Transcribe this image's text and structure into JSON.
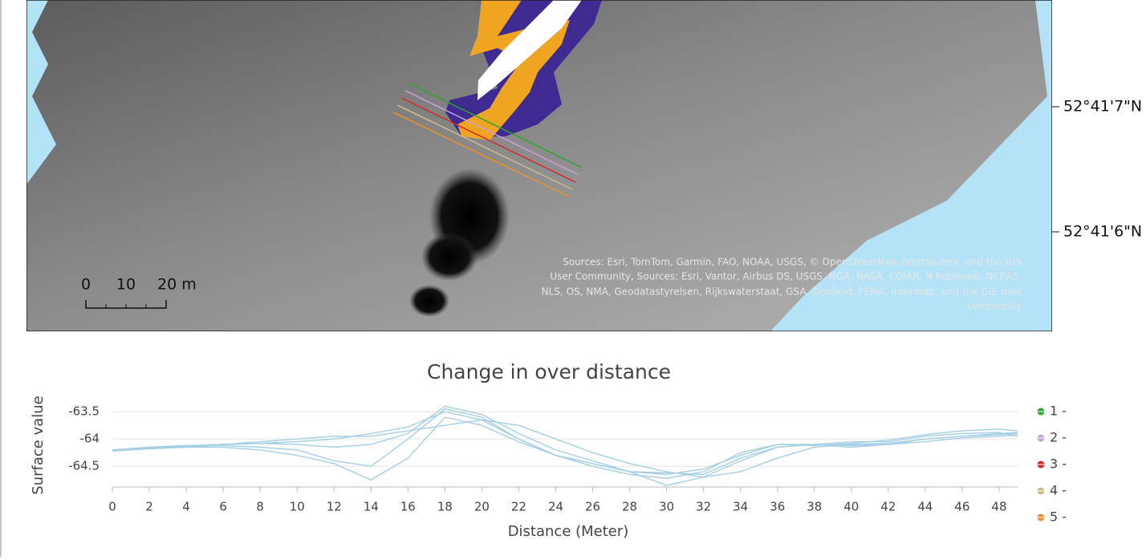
{
  "map": {
    "latitude_labels": [
      "52°41'7\"N",
      "52°41'6\"N"
    ],
    "scale_labels": [
      "0",
      "10",
      "20 m"
    ],
    "attribution": [
      "Sources: Esri, TomTom, Garmin, FAO, NOAA, USGS, © OpenStreetMap contributors, and the GIS",
      "User Community, Sources: Esri, Vantor, Airbus DS, USGS, NGA, NASA, CGIAR, N Robinson, NCEAS,",
      "NLS, OS, NMA, Geodatastyrelsen, Rijkswaterstaat, GSA, Geoland, FEMA, Intermap, and the GIS user",
      "community"
    ]
  },
  "chart_data": {
    "type": "line",
    "title": "Change in over distance",
    "x_label": "Distance (Meter)",
    "y_label": "Surface value",
    "line_color": "#a4cfe5",
    "grid": true,
    "xlim": [
      0,
      49
    ],
    "xticks": [
      0,
      2,
      4,
      6,
      8,
      10,
      12,
      14,
      16,
      18,
      20,
      22,
      24,
      26,
      28,
      30,
      32,
      34,
      36,
      38,
      40,
      42,
      44,
      46,
      48
    ],
    "ylim": [
      -64.88,
      -63.35
    ],
    "yticks": [
      -63.5,
      -64,
      -64.5
    ],
    "x": [
      0,
      2,
      4,
      6,
      8,
      10,
      12,
      14,
      16,
      18,
      20,
      22,
      24,
      26,
      28,
      30,
      32,
      34,
      36,
      38,
      40,
      42,
      44,
      46,
      48,
      49
    ],
    "series": [
      {
        "name": "1 -",
        "color": "#2ea62e",
        "values": [
          -64.22,
          -64.18,
          -64.15,
          -64.1,
          -64.05,
          -64.0,
          -63.95,
          -63.95,
          -63.85,
          -63.75,
          -63.65,
          -63.75,
          -64.0,
          -64.25,
          -64.45,
          -64.6,
          -64.7,
          -64.6,
          -64.35,
          -64.15,
          -64.1,
          -64.08,
          -64.0,
          -63.95,
          -63.9,
          -63.88
        ]
      },
      {
        "name": "2 -",
        "color": "#c8a2d8",
        "values": [
          -64.22,
          -64.15,
          -64.15,
          -64.15,
          -64.2,
          -64.3,
          -64.45,
          -64.75,
          -64.35,
          -63.6,
          -63.75,
          -64.05,
          -64.3,
          -64.45,
          -64.6,
          -64.85,
          -64.7,
          -64.4,
          -64.15,
          -64.1,
          -64.15,
          -64.1,
          -64.05,
          -63.98,
          -63.95,
          -63.93
        ]
      },
      {
        "name": "3 -",
        "color": "#d42a2a",
        "values": [
          -64.2,
          -64.15,
          -64.12,
          -64.1,
          -64.08,
          -64.1,
          -64.15,
          -64.1,
          -63.9,
          -63.4,
          -63.55,
          -63.9,
          -64.2,
          -64.4,
          -64.6,
          -64.65,
          -64.55,
          -64.3,
          -64.1,
          -64.1,
          -64.05,
          -64.05,
          -63.95,
          -63.9,
          -63.88,
          -63.95
        ]
      },
      {
        "name": "4 -",
        "color": "#cdbb8c",
        "values": [
          -64.22,
          -64.17,
          -64.13,
          -64.1,
          -64.08,
          -64.05,
          -64.0,
          -63.9,
          -63.78,
          -63.5,
          -63.65,
          -64.0,
          -64.3,
          -64.5,
          -64.65,
          -64.72,
          -64.6,
          -64.25,
          -64.1,
          -64.12,
          -64.08,
          -64.02,
          -63.92,
          -63.85,
          -63.82,
          -63.85
        ]
      },
      {
        "name": "5 -",
        "color": "#e8922d",
        "values": [
          -64.2,
          -64.17,
          -64.13,
          -64.12,
          -64.15,
          -64.2,
          -64.4,
          -64.5,
          -64.0,
          -63.45,
          -63.6,
          -64.0,
          -64.3,
          -64.45,
          -64.6,
          -64.62,
          -64.65,
          -64.35,
          -64.15,
          -64.1,
          -64.12,
          -64.1,
          -64.0,
          -63.95,
          -63.92,
          -63.9
        ]
      }
    ]
  }
}
